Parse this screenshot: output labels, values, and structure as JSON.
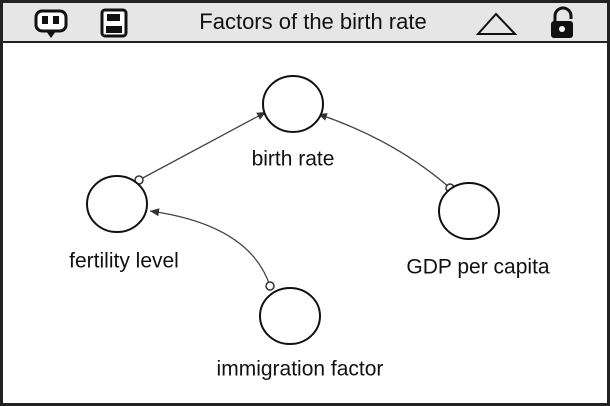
{
  "header": {
    "title": "Factors of the birth rate"
  },
  "nodes": [
    {
      "label": "birth rate"
    },
    {
      "label": "fertility level"
    },
    {
      "label": "GDP per capita"
    },
    {
      "label": "immigration factor"
    }
  ]
}
